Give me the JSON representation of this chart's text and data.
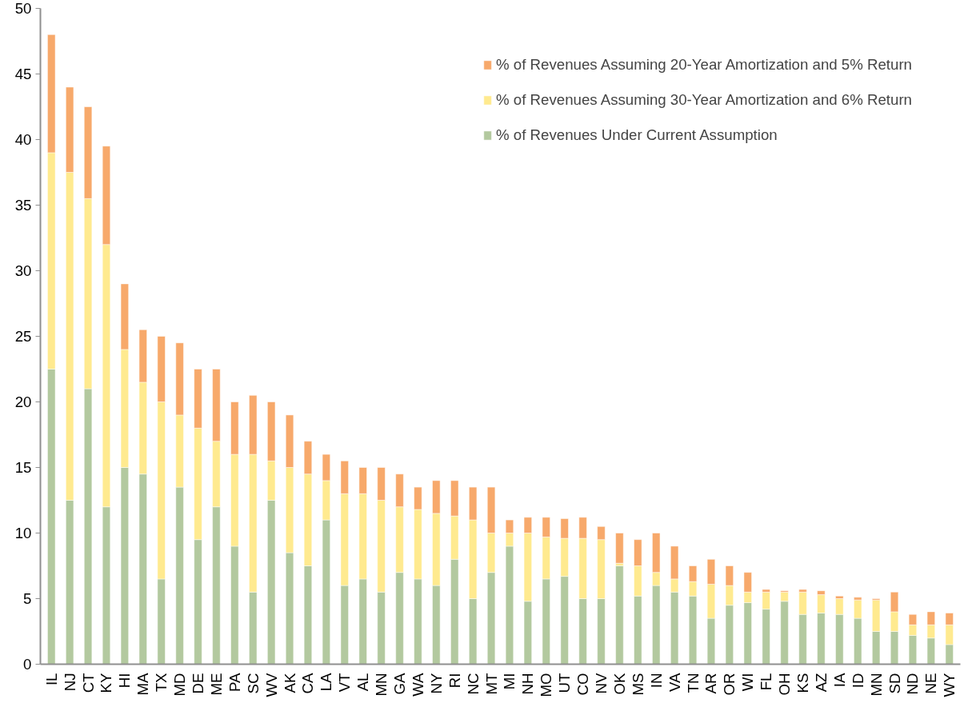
{
  "chart_data": {
    "type": "bar",
    "stacked": true,
    "categories": [
      "IL",
      "NJ",
      "CT",
      "KY",
      "HI",
      "MA",
      "TX",
      "MD",
      "DE",
      "ME",
      "PA",
      "SC",
      "WV",
      "AK",
      "CA",
      "LA",
      "VT",
      "AL",
      "MN",
      "GA",
      "WA",
      "NY",
      "RI",
      "NC",
      "MT",
      "MI",
      "NH",
      "MO",
      "UT",
      "CO",
      "NV",
      "OK",
      "MS",
      "IN",
      "VA",
      "TN",
      "AR",
      "OR",
      "WI",
      "FL",
      "OH",
      "KS",
      "AZ",
      "IA",
      "ID",
      "MN",
      "SD",
      "ND",
      "NE",
      "WY"
    ],
    "series": [
      {
        "name": "% of Revenues Under Current Assumption",
        "color": "#b3c99f",
        "values": [
          22.5,
          12.5,
          21,
          12,
          15,
          14.5,
          6.5,
          13.5,
          9.5,
          12,
          9,
          5.5,
          12.5,
          8.5,
          7.5,
          11,
          6,
          6.5,
          5.5,
          7,
          6.5,
          6,
          8,
          5,
          7,
          9,
          4.8,
          6.5,
          6.7,
          5,
          5,
          7.5,
          5.2,
          6,
          5.5,
          5.2,
          3.5,
          4.5,
          4.7,
          4.2,
          4.8,
          3.8,
          3.9,
          3.8,
          3.5,
          2.5,
          2.5,
          2.2,
          2,
          1.5
        ]
      },
      {
        "name": "% of Revenues Assuming 30-Year Amortization and 6% Return",
        "color": "#ffea8f",
        "values": [
          16.5,
          25,
          14.5,
          20,
          9,
          7,
          13.5,
          5.5,
          8.5,
          5,
          7,
          10.5,
          3,
          6.5,
          7,
          3,
          7,
          6.5,
          7,
          5,
          5.3,
          5.5,
          3.3,
          6,
          3,
          1,
          5.2,
          3.2,
          2.9,
          4.6,
          4.5,
          0.2,
          2.3,
          1,
          1,
          1.1,
          2.6,
          1.5,
          0.8,
          1.3,
          0.7,
          1.7,
          1.4,
          1.2,
          1.4,
          2.4,
          1.5,
          0.8,
          1,
          1.5
        ]
      },
      {
        "name": "% of Revenues Assuming 20-Year Amortization and 5% Return",
        "color": "#f7a96b",
        "values": [
          9,
          6.5,
          7,
          7.5,
          5,
          4,
          5,
          5.5,
          4.5,
          5.5,
          4,
          4.5,
          4.5,
          4,
          2.5,
          2,
          2.5,
          2,
          2.5,
          2.5,
          1.7,
          2.5,
          2.7,
          2.5,
          3.5,
          1,
          1.2,
          1.5,
          1.5,
          1.6,
          1,
          2.3,
          2,
          3,
          2.5,
          1.2,
          1.9,
          1.5,
          1.5,
          0.2,
          0.1,
          0.2,
          0.3,
          0.2,
          0.2,
          0.1,
          1.5,
          0.8,
          1,
          0.9
        ]
      }
    ],
    "ylim": [
      0,
      50
    ],
    "yticks": [
      0,
      5,
      10,
      15,
      20,
      25,
      30,
      35,
      40,
      45,
      50
    ],
    "grid": false,
    "legend": "top right"
  }
}
